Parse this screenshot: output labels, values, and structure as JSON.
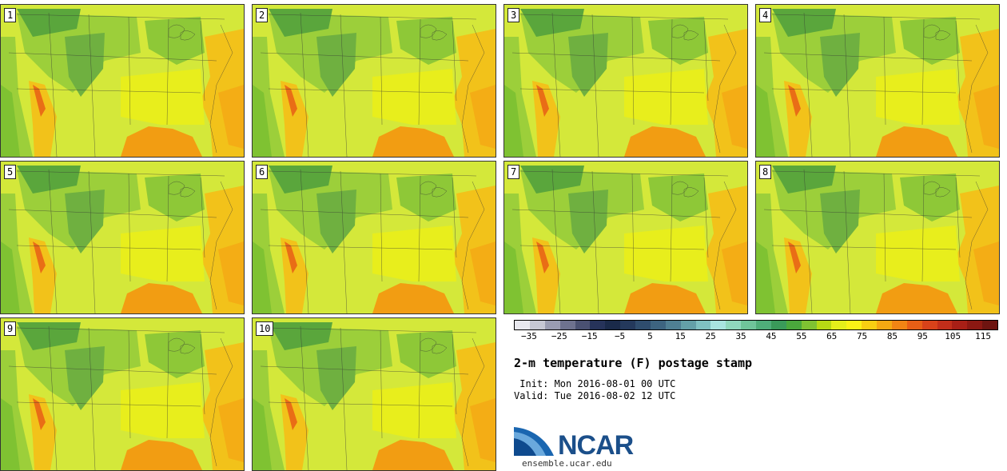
{
  "panels": [
    {
      "label": "1"
    },
    {
      "label": "2"
    },
    {
      "label": "3"
    },
    {
      "label": "4"
    },
    {
      "label": "5"
    },
    {
      "label": "6"
    },
    {
      "label": "7"
    },
    {
      "label": "8"
    },
    {
      "label": "9"
    },
    {
      "label": "10"
    }
  ],
  "colorbar": {
    "colors": [
      "#e8e8ee",
      "#c6c7d4",
      "#9a9cb2",
      "#6e728f",
      "#4a5172",
      "#26335a",
      "#1a2a4a",
      "#24395c",
      "#2f4d6e",
      "#3d6480",
      "#4f7f93",
      "#64a0a8",
      "#80c1c2",
      "#a8e4e0",
      "#8fd8bd",
      "#6fc49a",
      "#4fae7a",
      "#3a9a5a",
      "#4aa83c",
      "#7fc232",
      "#b7d914",
      "#e5ef1a",
      "#fbf216",
      "#f8cf12",
      "#f5a912",
      "#f18414",
      "#e85e16",
      "#d8421a",
      "#c22e1a",
      "#a81f16",
      "#8c1812",
      "#6e1410"
    ],
    "ticks": [
      "-35",
      "-25",
      "-15",
      "-5",
      "5",
      "15",
      "25",
      "35",
      "45",
      "55",
      "65",
      "75",
      "85",
      "95",
      "105",
      "115"
    ]
  },
  "title": "2-m temperature (F) postage stamp",
  "init": " Init: Mon 2016-08-01 00 UTC",
  "valid": "Valid: Tue 2016-08-02 12 UTC",
  "logo": {
    "text": "NCAR",
    "site": "ensemble.ucar.edu"
  }
}
